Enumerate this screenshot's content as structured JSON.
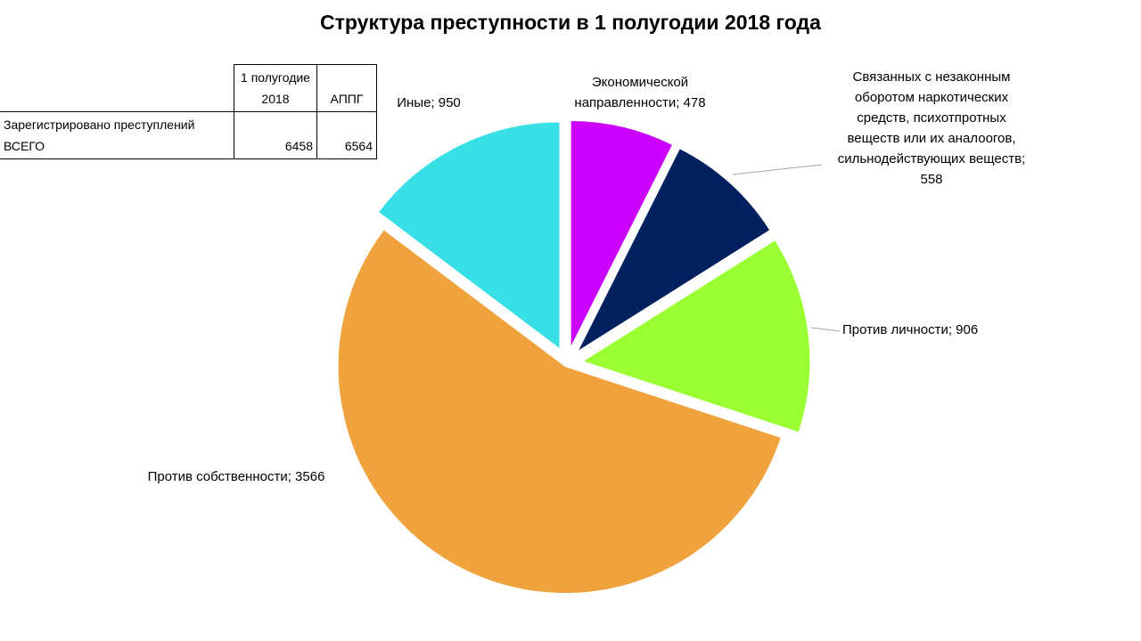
{
  "chart_data": {
    "type": "pie",
    "title": "Структура преступности в 1 полугодии 2018 года",
    "values": [
      478,
      558,
      906,
      3566,
      950
    ],
    "value_labels": [
      "Экономической\nнаправленности; 478",
      "Связанных с незаконным\nоборотом наркотических\nсредств, психотпротных\nвеществ или их аналоогов,\nсильнодействующих веществ;\n558",
      "Против личности; 906",
      "Против собственности; 3566",
      "Иные; 950"
    ],
    "colors": [
      "#cc00ff",
      "#002060",
      "#99ff33",
      "#f0a33c",
      "#38e0e6"
    ]
  },
  "table": {
    "columns": [
      "1 полугодие 2018",
      "АППГ"
    ],
    "rows": [
      {
        "label": "Зарегистрировано преступлений ВСЕГО",
        "values": [
          6458,
          6564
        ]
      }
    ]
  }
}
